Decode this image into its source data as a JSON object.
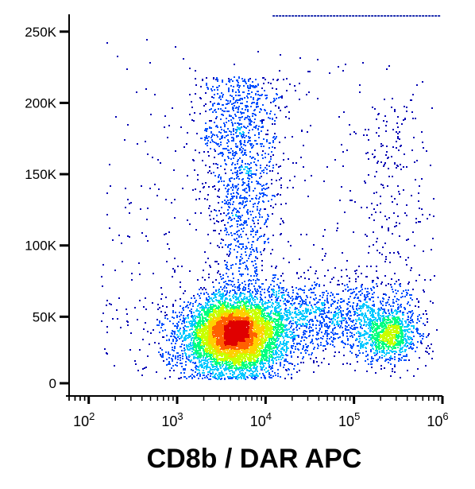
{
  "chart_data": {
    "type": "scatter",
    "subtype": "flow-cytometry-density-dot-plot",
    "xlabel": "CD8b / DAR APC",
    "ylabel": "",
    "x_scale": "log",
    "xlim": [
      60,
      1000000
    ],
    "ylim": [
      0,
      262144
    ],
    "x_ticks": [
      {
        "value": 100,
        "base": "10",
        "exp": "2"
      },
      {
        "value": 1000,
        "base": "10",
        "exp": "3"
      },
      {
        "value": 10000,
        "base": "10",
        "exp": "4"
      },
      {
        "value": 100000,
        "base": "10",
        "exp": "5"
      },
      {
        "value": 1000000,
        "base": "10",
        "exp": "6"
      }
    ],
    "y_ticks": [
      {
        "value": 0,
        "label": "0"
      },
      {
        "value": 50000,
        "label": "50K"
      },
      {
        "value": 100000,
        "label": "100K"
      },
      {
        "value": 150000,
        "label": "150K"
      },
      {
        "value": 200000,
        "label": "200K"
      },
      {
        "value": 250000,
        "label": "250K"
      }
    ],
    "grid": false,
    "legend": "none",
    "colormap": [
      "#0000b4",
      "#0050ff",
      "#00c8ff",
      "#00ff80",
      "#c8ff00",
      "#ffd000",
      "#ff6000",
      "#e00000"
    ],
    "populations": [
      {
        "center_x": 4500,
        "center_y": 40000,
        "points": 6500,
        "density": "high"
      },
      {
        "center_x": 250000,
        "center_y": 38000,
        "points": 1100,
        "density": "medium"
      },
      {
        "center_x": 5000,
        "center_y": 150000,
        "points": 1300,
        "density": "low"
      },
      {
        "center_x": 30000,
        "center_y": 60000,
        "points": 900,
        "density": "low"
      }
    ],
    "saturation_line": {
      "y": 262144,
      "x_range": [
        12000,
        1000000
      ]
    }
  }
}
